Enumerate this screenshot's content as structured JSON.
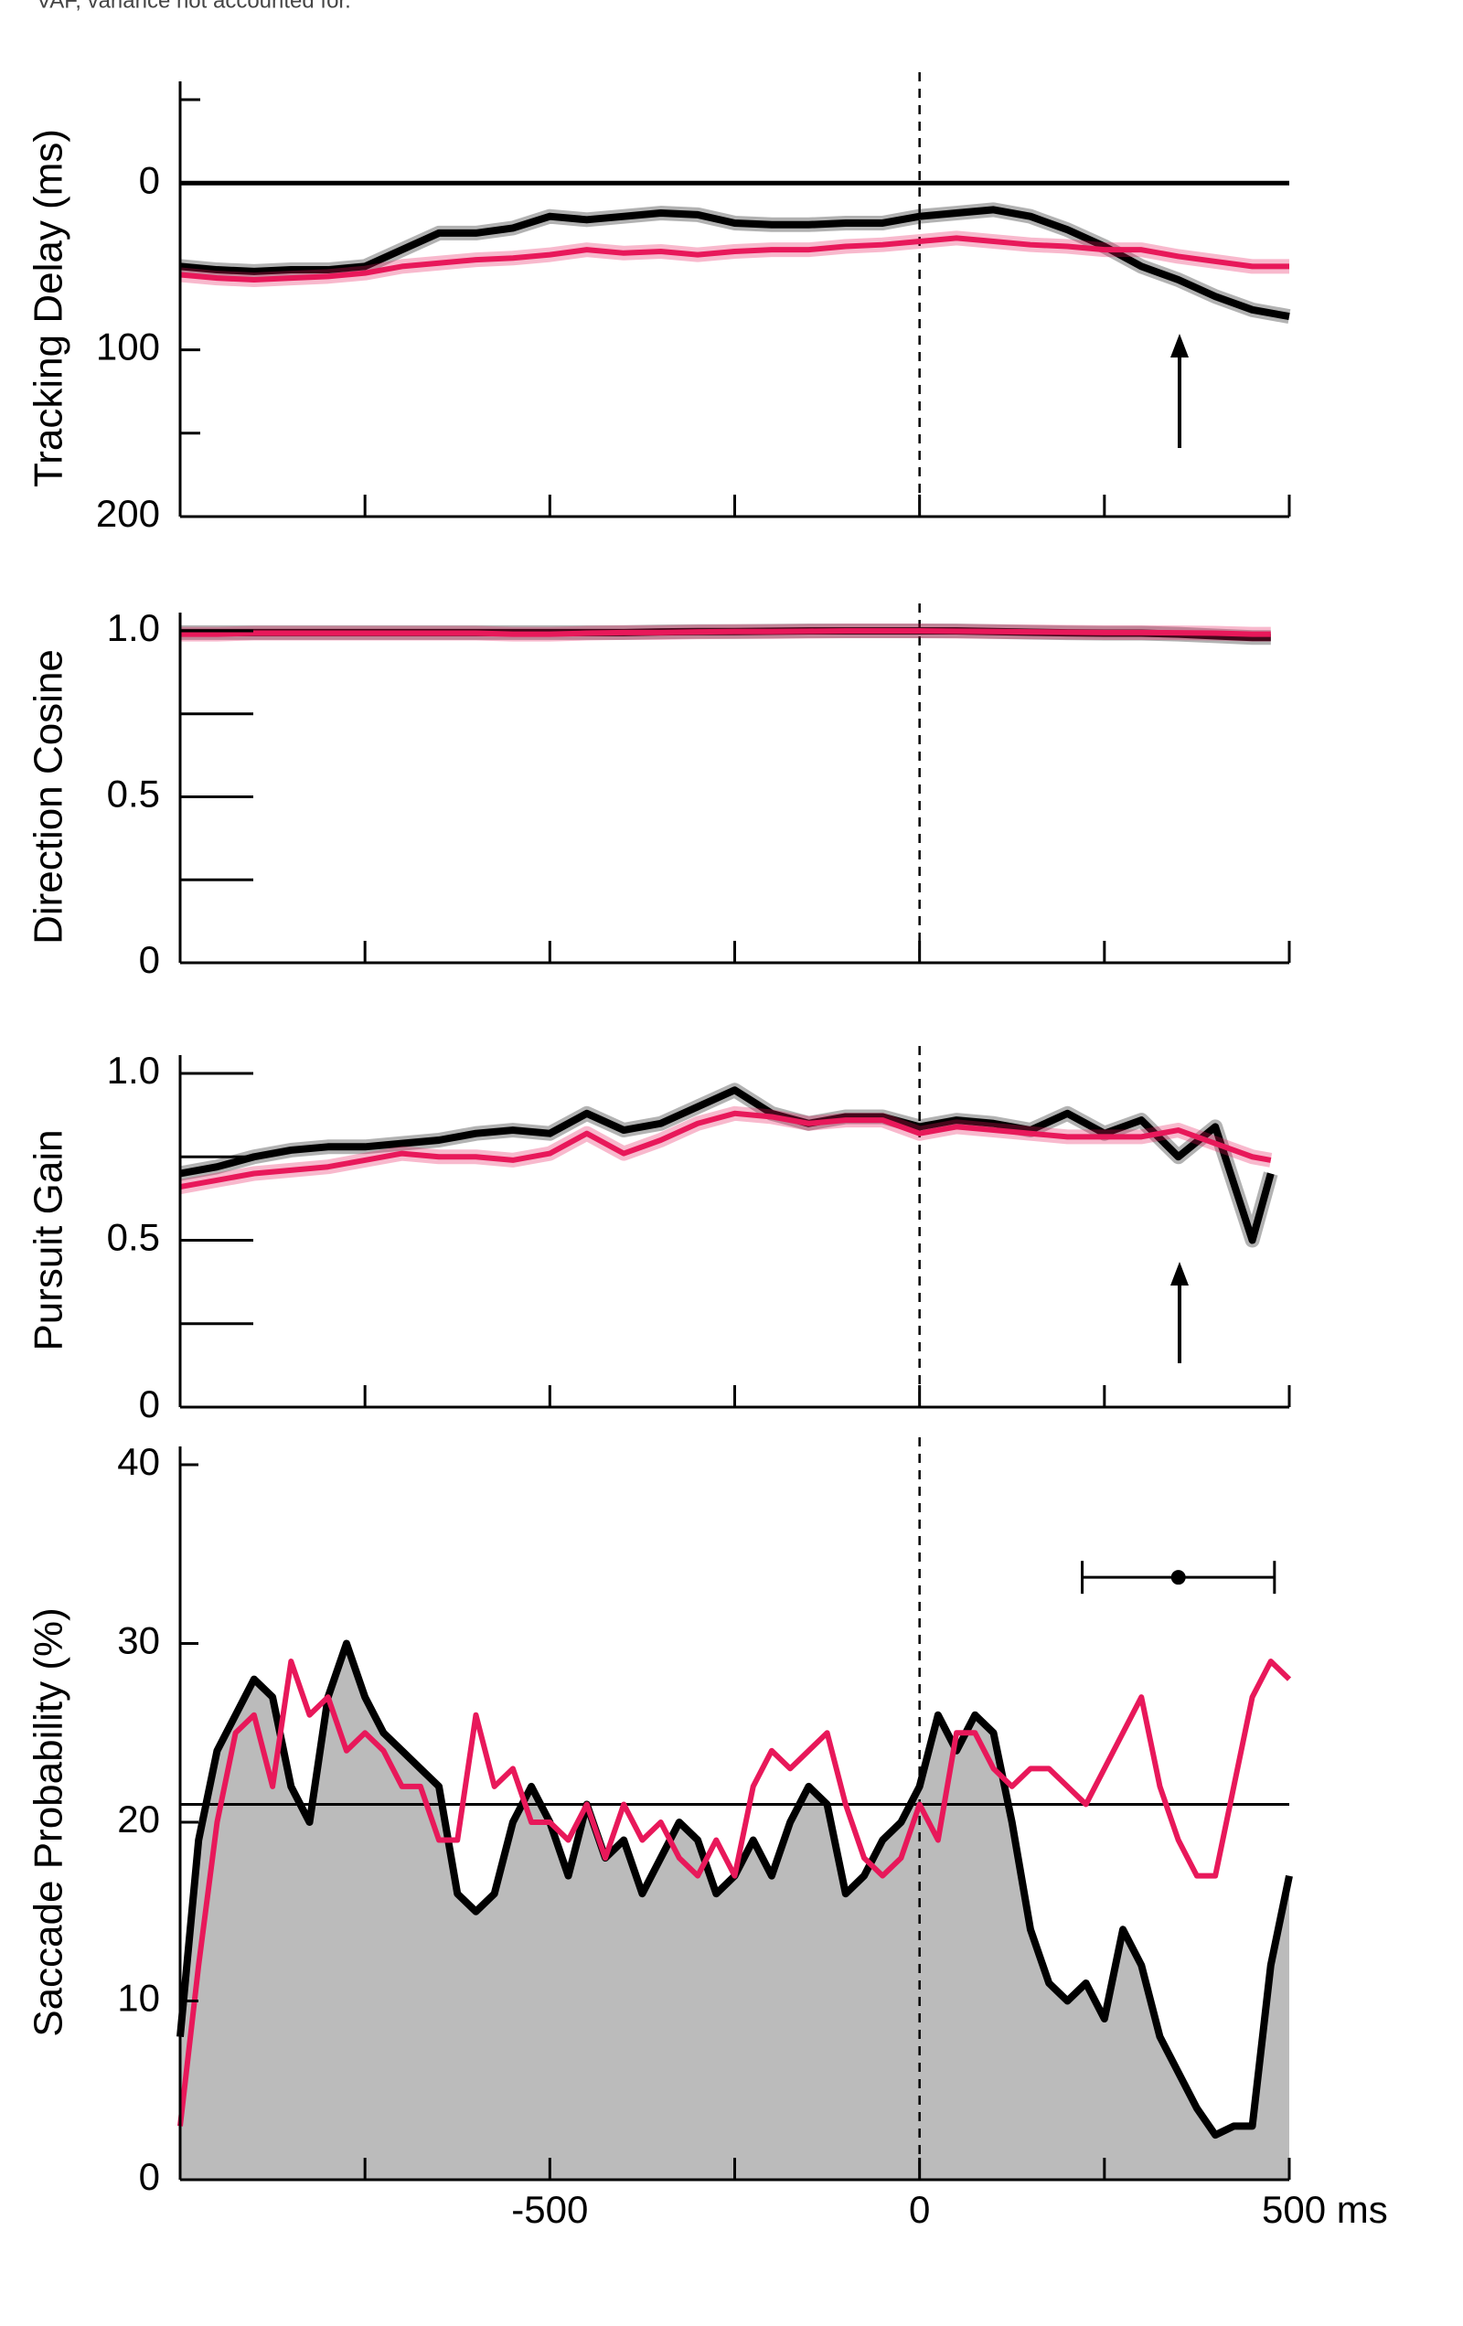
{
  "note": "VAF, variance not accounted for.",
  "chart_data": [
    {
      "type": "line",
      "ylabel": "Tracking Delay (ms)",
      "xlim": [
        -1000,
        500
      ],
      "ylim": [
        200,
        -50
      ],
      "yticks": [
        0,
        100,
        200
      ],
      "yminorticks": [
        -50,
        150
      ],
      "xminorticks": [
        -750,
        -500,
        -250,
        0,
        250,
        500
      ],
      "hline": 0,
      "vline": 0,
      "x": [
        -1000,
        -950,
        -900,
        -850,
        -800,
        -750,
        -700,
        -650,
        -600,
        -550,
        -500,
        -450,
        -400,
        -350,
        -300,
        -250,
        -200,
        -150,
        -100,
        -50,
        0,
        50,
        100,
        150,
        200,
        250,
        300,
        350,
        400,
        450,
        500
      ],
      "series": [
        {
          "color": "#000000",
          "values": [
            50,
            52,
            53,
            52,
            52,
            50,
            40,
            30,
            30,
            27,
            20,
            22,
            20,
            18,
            19,
            24,
            25,
            25,
            24,
            24,
            20,
            18,
            16,
            20,
            28,
            38,
            50,
            58,
            68,
            76,
            80
          ]
        },
        {
          "color": "#e8185a",
          "values": [
            55,
            57,
            58,
            57,
            56,
            54,
            50,
            48,
            46,
            45,
            43,
            40,
            42,
            41,
            43,
            41,
            40,
            40,
            38,
            37,
            35,
            33,
            35,
            37,
            38,
            40,
            40,
            44,
            47,
            50,
            50
          ]
        }
      ]
    },
    {
      "type": "line",
      "ylabel": "Direction Cosine",
      "xlim": [
        -1000,
        500
      ],
      "ylim": [
        0,
        1
      ],
      "yticks": [
        0,
        0.5,
        {
          "value": 1,
          "label": "1.0"
        }
      ],
      "yminorticks": [
        0.25,
        0.75
      ],
      "xminorticks": [
        -750,
        -500,
        -250,
        0,
        250,
        500
      ],
      "vline": 0,
      "x": [
        -1000,
        -950,
        -900,
        -850,
        -800,
        -750,
        -700,
        -650,
        -600,
        -550,
        -500,
        -450,
        -400,
        -350,
        -300,
        -250,
        -200,
        -150,
        -100,
        -50,
        0,
        50,
        100,
        150,
        200,
        250,
        300,
        350,
        400,
        450,
        475
      ],
      "series": [
        {
          "color": "#000000",
          "values": [
            0.995,
            0.995,
            0.995,
            0.995,
            0.995,
            0.995,
            0.995,
            0.995,
            0.995,
            0.995,
            0.995,
            0.995,
            0.995,
            0.997,
            0.998,
            0.998,
            0.999,
            1,
            1,
            1,
            1,
            1,
            0.998,
            0.996,
            0.994,
            0.993,
            0.993,
            0.99,
            0.985,
            0.98,
            0.98
          ]
        },
        {
          "color": "#e8185a",
          "values": [
            0.99,
            0.99,
            0.993,
            0.993,
            0.993,
            0.993,
            0.993,
            0.993,
            0.993,
            0.99,
            0.99,
            0.993,
            0.995,
            0.995,
            0.997,
            0.998,
            0.998,
            0.999,
            1,
            1,
            1,
            0.999,
            0.998,
            0.997,
            0.996,
            0.995,
            0.995,
            0.994,
            0.993,
            0.99,
            0.99
          ]
        }
      ]
    },
    {
      "type": "line",
      "ylabel": "Pursuit Gain",
      "xlim": [
        -1000,
        500
      ],
      "ylim": [
        0,
        1
      ],
      "yticks": [
        0,
        0.5,
        {
          "value": 1,
          "label": "1.0"
        }
      ],
      "yminorticks": [
        0.25,
        0.75
      ],
      "xminorticks": [
        -750,
        -500,
        -250,
        0,
        250,
        500
      ],
      "vline": 0,
      "x": [
        -1000,
        -950,
        -900,
        -850,
        -800,
        -750,
        -700,
        -650,
        -600,
        -550,
        -500,
        -450,
        -400,
        -350,
        -300,
        -250,
        -200,
        -150,
        -100,
        -50,
        0,
        50,
        100,
        150,
        200,
        250,
        300,
        350,
        400,
        450,
        475
      ],
      "series": [
        {
          "color": "#000000",
          "values": [
            0.7,
            0.72,
            0.75,
            0.77,
            0.78,
            0.78,
            0.79,
            0.8,
            0.82,
            0.83,
            0.82,
            0.88,
            0.83,
            0.85,
            0.9,
            0.95,
            0.88,
            0.85,
            0.87,
            0.87,
            0.84,
            0.86,
            0.85,
            0.83,
            0.88,
            0.82,
            0.86,
            0.75,
            0.84,
            0.5,
            0.7
          ]
        },
        {
          "color": "#e8185a",
          "values": [
            0.66,
            0.68,
            0.7,
            0.71,
            0.72,
            0.74,
            0.76,
            0.75,
            0.75,
            0.74,
            0.76,
            0.82,
            0.76,
            0.8,
            0.85,
            0.88,
            0.87,
            0.85,
            0.86,
            0.86,
            0.82,
            0.84,
            0.83,
            0.82,
            0.81,
            0.81,
            0.81,
            0.83,
            0.79,
            0.75,
            0.74
          ]
        }
      ]
    },
    {
      "type": "line",
      "ylabel": "Saccade Probability (%)",
      "xlim": [
        -1000,
        500
      ],
      "ylim": [
        0,
        40
      ],
      "yticks": [
        0,
        10,
        20,
        30,
        40
      ],
      "xticks": [
        -500,
        0,
        {
          "value": 500,
          "label": "500 ms"
        }
      ],
      "xminorticks": [
        -750,
        -250,
        250
      ],
      "hline": 21,
      "vline": 0,
      "interval": {
        "center": 350,
        "low": 220,
        "high": 480,
        "y": 33.7
      },
      "x": [
        -1000,
        -975,
        -950,
        -925,
        -900,
        -875,
        -850,
        -825,
        -800,
        -775,
        -750,
        -725,
        -700,
        -675,
        -650,
        -625,
        -600,
        -575,
        -550,
        -525,
        -500,
        -475,
        -450,
        -425,
        -400,
        -375,
        -350,
        -325,
        -300,
        -275,
        -250,
        -225,
        -200,
        -175,
        -150,
        -125,
        -100,
        -75,
        -50,
        -25,
        0,
        25,
        50,
        75,
        100,
        125,
        150,
        175,
        200,
        225,
        250,
        275,
        300,
        325,
        350,
        375,
        400,
        425,
        450,
        475,
        500
      ],
      "series": [
        {
          "color": "#000000",
          "fill": "#bbbbbb",
          "values": [
            8,
            19,
            24,
            26,
            28,
            27,
            22,
            20,
            27,
            30,
            27,
            25,
            24,
            23,
            22,
            16,
            15,
            16,
            20,
            22,
            20,
            17,
            21,
            18,
            19,
            16,
            18,
            20,
            19,
            16,
            17,
            19,
            17,
            20,
            22,
            21,
            16,
            17,
            19,
            20,
            22,
            26,
            24,
            26,
            25,
            20,
            14,
            11,
            10,
            11,
            9,
            14,
            12,
            8,
            6,
            4,
            2.5,
            3,
            3,
            12,
            17
          ]
        },
        {
          "color": "#e8185a",
          "values": [
            3,
            12,
            20,
            25,
            26,
            22,
            29,
            26,
            27,
            24,
            25,
            24,
            22,
            22,
            19,
            19,
            26,
            22,
            23,
            20,
            20,
            19,
            21,
            18,
            21,
            19,
            20,
            18,
            17,
            19,
            17,
            22,
            24,
            23,
            24,
            25,
            21,
            18,
            17,
            18,
            21,
            19,
            25,
            25,
            23,
            22,
            23,
            23,
            22,
            21,
            23,
            25,
            27,
            22,
            19,
            17,
            17,
            22,
            27,
            29,
            28
          ]
        }
      ]
    }
  ]
}
